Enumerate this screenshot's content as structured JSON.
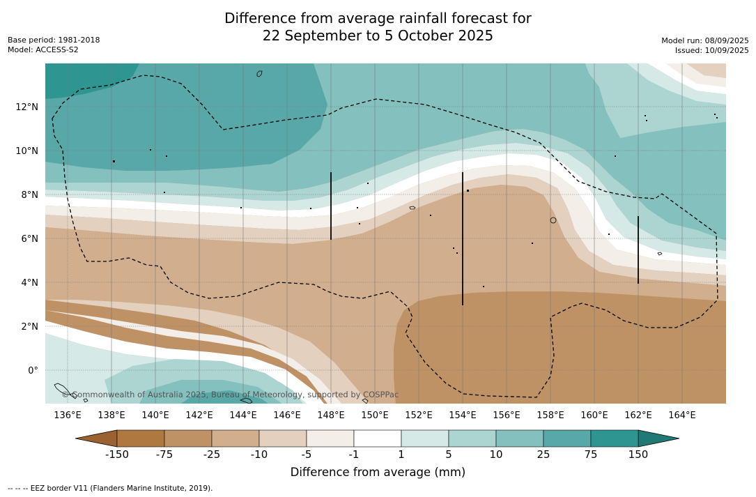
{
  "title": {
    "line1": "Difference from average rainfall forecast for",
    "line2": "22 September to 5 October 2025"
  },
  "meta_left": {
    "base_period": "Base period: 1981-2018",
    "model": "Model: ACCESS-S2"
  },
  "meta_right": {
    "model_run": "Model run: 08/09/2025",
    "issued": "Issued: 10/09/2025"
  },
  "map": {
    "lat_labels": [
      "12°N",
      "10°N",
      "8°N",
      "6°N",
      "4°N",
      "2°N",
      "0°"
    ],
    "lon_labels": [
      "136°E",
      "138°E",
      "140°E",
      "142°E",
      "144°E",
      "146°E",
      "148°E",
      "150°E",
      "152°E",
      "154°E",
      "156°E",
      "158°E",
      "160°E",
      "162°E",
      "164°E"
    ],
    "copyright": "© Commonwealth of Australia 2025, Bureau of Meteorology, supported by COSPPac"
  },
  "colorbar": {
    "tick_labels": [
      "-150",
      "-75",
      "-25",
      "-10",
      "-5",
      "-1",
      "1",
      "5",
      "10",
      "25",
      "75",
      "150"
    ],
    "colors": [
      "#ae7840",
      "#bf9266",
      "#d1ae8d",
      "#e3d0bf",
      "#f3eee8",
      "#ffffff",
      "#d5e9e7",
      "#acd5d2",
      "#83c0be",
      "#58a8a7",
      "#2f9591"
    ],
    "extend_low_color": "#9a6231",
    "extend_high_color": "#1f7a76",
    "title": "Difference from average (mm)"
  },
  "footnote": "--  --  -- EEZ border V11 (Flanders Marine Institute, 2019)."
}
